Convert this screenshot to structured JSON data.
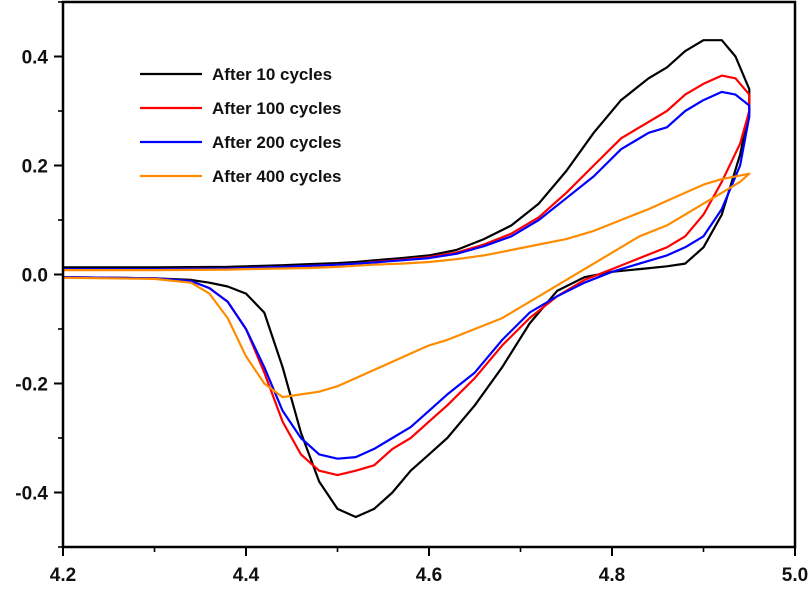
{
  "chart_data": {
    "type": "line",
    "title": "",
    "xlabel": "",
    "ylabel": "",
    "xlim": [
      4.2,
      5.0
    ],
    "ylim": [
      -0.5,
      0.5
    ],
    "x_ticks": [
      4.2,
      4.4,
      4.6,
      4.8,
      5.0
    ],
    "x_tick_labels": [
      "4.2",
      "4.4",
      "4.6",
      "4.8",
      "5.0"
    ],
    "y_ticks": [
      -0.4,
      -0.2,
      0.0,
      0.2,
      0.4
    ],
    "y_tick_labels": [
      "-0.4",
      "-0.2",
      "0.0",
      "0.2",
      "0.4"
    ],
    "grid": false,
    "legend_position": "top-left",
    "series": [
      {
        "name": "After 10 cycles",
        "color": "#000000",
        "x": [
          4.2,
          4.3,
          4.38,
          4.4,
          4.44,
          4.47,
          4.5,
          4.52,
          4.54,
          4.57,
          4.6,
          4.63,
          4.66,
          4.69,
          4.72,
          4.75,
          4.78,
          4.81,
          4.84,
          4.86,
          4.88,
          4.9,
          4.92,
          4.935,
          4.95,
          4.95,
          4.94,
          4.92,
          4.9,
          4.88,
          4.86,
          4.83,
          4.8,
          4.77,
          4.74,
          4.71,
          4.68,
          4.65,
          4.62,
          4.6,
          4.58,
          4.56,
          4.54,
          4.52,
          4.5,
          4.48,
          4.46,
          4.44,
          4.42,
          4.4,
          4.38,
          4.36,
          4.34,
          4.3,
          4.2
        ],
        "y": [
          0.013,
          0.013,
          0.014,
          0.015,
          0.017,
          0.019,
          0.021,
          0.023,
          0.026,
          0.03,
          0.035,
          0.045,
          0.065,
          0.09,
          0.13,
          0.19,
          0.26,
          0.32,
          0.36,
          0.38,
          0.41,
          0.43,
          0.43,
          0.4,
          0.34,
          0.3,
          0.22,
          0.11,
          0.05,
          0.02,
          0.015,
          0.01,
          0.005,
          -0.005,
          -0.03,
          -0.09,
          -0.17,
          -0.24,
          -0.3,
          -0.33,
          -0.36,
          -0.4,
          -0.43,
          -0.445,
          -0.43,
          -0.38,
          -0.29,
          -0.17,
          -0.07,
          -0.035,
          -0.022,
          -0.015,
          -0.01,
          -0.007,
          -0.005
        ]
      },
      {
        "name": "After 100 cycles",
        "color": "#ff0000",
        "x": [
          4.2,
          4.3,
          4.38,
          4.4,
          4.44,
          4.47,
          4.5,
          4.52,
          4.54,
          4.57,
          4.6,
          4.63,
          4.66,
          4.69,
          4.72,
          4.75,
          4.78,
          4.81,
          4.84,
          4.86,
          4.88,
          4.9,
          4.92,
          4.935,
          4.95,
          4.95,
          4.94,
          4.92,
          4.9,
          4.88,
          4.86,
          4.83,
          4.8,
          4.77,
          4.74,
          4.71,
          4.68,
          4.65,
          4.62,
          4.6,
          4.58,
          4.56,
          4.54,
          4.52,
          4.5,
          4.48,
          4.46,
          4.44,
          4.42,
          4.4,
          4.38,
          4.36,
          4.34,
          4.3,
          4.2
        ],
        "y": [
          0.01,
          0.01,
          0.011,
          0.012,
          0.014,
          0.016,
          0.018,
          0.02,
          0.023,
          0.027,
          0.032,
          0.04,
          0.055,
          0.075,
          0.105,
          0.15,
          0.2,
          0.25,
          0.28,
          0.3,
          0.33,
          0.35,
          0.365,
          0.36,
          0.33,
          0.3,
          0.24,
          0.17,
          0.11,
          0.07,
          0.05,
          0.03,
          0.01,
          -0.01,
          -0.04,
          -0.08,
          -0.13,
          -0.19,
          -0.24,
          -0.27,
          -0.3,
          -0.32,
          -0.35,
          -0.36,
          -0.368,
          -0.36,
          -0.33,
          -0.27,
          -0.18,
          -0.1,
          -0.05,
          -0.025,
          -0.012,
          -0.007,
          -0.005
        ]
      },
      {
        "name": "After 200 cycles",
        "color": "#0000ff",
        "x": [
          4.2,
          4.3,
          4.38,
          4.4,
          4.44,
          4.47,
          4.5,
          4.52,
          4.54,
          4.57,
          4.6,
          4.63,
          4.66,
          4.69,
          4.72,
          4.75,
          4.78,
          4.81,
          4.84,
          4.86,
          4.88,
          4.9,
          4.92,
          4.935,
          4.95,
          4.95,
          4.94,
          4.92,
          4.9,
          4.88,
          4.86,
          4.83,
          4.8,
          4.77,
          4.74,
          4.71,
          4.68,
          4.65,
          4.62,
          4.6,
          4.58,
          4.56,
          4.54,
          4.52,
          4.5,
          4.48,
          4.46,
          4.44,
          4.42,
          4.4,
          4.38,
          4.36,
          4.34,
          4.3,
          4.2
        ],
        "y": [
          0.01,
          0.01,
          0.011,
          0.012,
          0.014,
          0.016,
          0.018,
          0.02,
          0.022,
          0.026,
          0.03,
          0.038,
          0.052,
          0.07,
          0.1,
          0.14,
          0.18,
          0.23,
          0.26,
          0.27,
          0.3,
          0.32,
          0.335,
          0.33,
          0.31,
          0.29,
          0.2,
          0.12,
          0.07,
          0.05,
          0.035,
          0.02,
          0.005,
          -0.015,
          -0.04,
          -0.07,
          -0.12,
          -0.18,
          -0.22,
          -0.25,
          -0.28,
          -0.3,
          -0.32,
          -0.335,
          -0.338,
          -0.33,
          -0.3,
          -0.25,
          -0.17,
          -0.1,
          -0.05,
          -0.025,
          -0.012,
          -0.007,
          -0.005
        ]
      },
      {
        "name": "After 400 cycles",
        "color": "#ff8c00",
        "x": [
          4.2,
          4.3,
          4.38,
          4.4,
          4.44,
          4.47,
          4.5,
          4.52,
          4.54,
          4.57,
          4.6,
          4.63,
          4.66,
          4.69,
          4.72,
          4.75,
          4.78,
          4.81,
          4.84,
          4.86,
          4.88,
          4.9,
          4.92,
          4.935,
          4.95,
          4.95,
          4.94,
          4.92,
          4.9,
          4.88,
          4.86,
          4.83,
          4.8,
          4.77,
          4.74,
          4.71,
          4.68,
          4.65,
          4.62,
          4.6,
          4.58,
          4.56,
          4.54,
          4.52,
          4.5,
          4.48,
          4.46,
          4.44,
          4.42,
          4.4,
          4.38,
          4.36,
          4.34,
          4.3,
          4.2
        ],
        "y": [
          0.008,
          0.008,
          0.009,
          0.01,
          0.011,
          0.012,
          0.014,
          0.016,
          0.018,
          0.02,
          0.023,
          0.028,
          0.035,
          0.045,
          0.055,
          0.065,
          0.08,
          0.1,
          0.12,
          0.135,
          0.15,
          0.165,
          0.175,
          0.18,
          0.185,
          0.185,
          0.17,
          0.15,
          0.13,
          0.11,
          0.09,
          0.07,
          0.04,
          0.01,
          -0.02,
          -0.05,
          -0.08,
          -0.1,
          -0.12,
          -0.13,
          -0.145,
          -0.16,
          -0.175,
          -0.19,
          -0.205,
          -0.215,
          -0.22,
          -0.225,
          -0.2,
          -0.15,
          -0.08,
          -0.035,
          -0.015,
          -0.008,
          -0.006
        ]
      }
    ]
  }
}
